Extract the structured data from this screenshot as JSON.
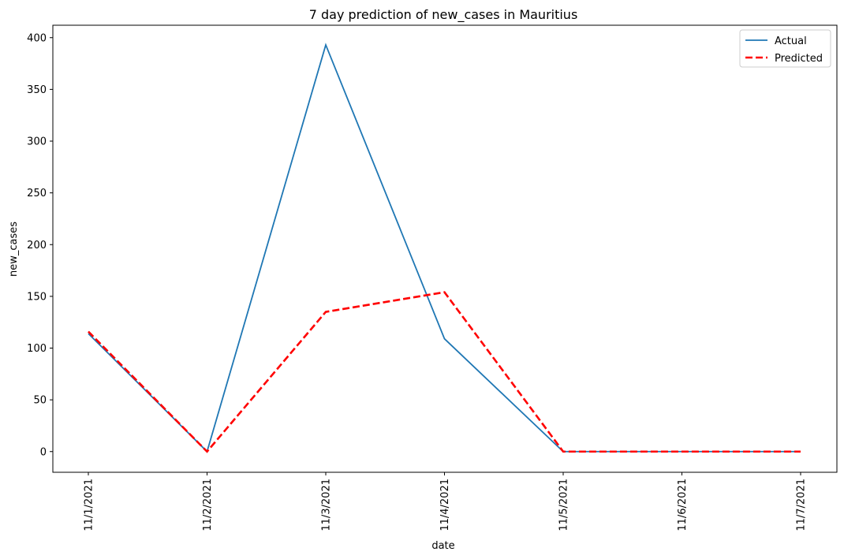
{
  "chart_data": {
    "type": "line",
    "title": "7 day prediction of new_cases in Mauritius",
    "xlabel": "date",
    "ylabel": "new_cases",
    "categories": [
      "11/1/2021",
      "11/2/2021",
      "11/3/2021",
      "11/4/2021",
      "11/5/2021",
      "11/6/2021",
      "11/7/2021"
    ],
    "ylim": [
      -20,
      412
    ],
    "yticks": [
      0,
      50,
      100,
      150,
      200,
      250,
      300,
      350,
      400
    ],
    "series": [
      {
        "name": "Actual",
        "values": [
          114,
          0,
          393,
          109,
          0,
          0,
          0
        ],
        "color": "#1f77b4",
        "style": "solid"
      },
      {
        "name": "Predicted",
        "values": [
          116,
          0,
          135,
          154,
          0,
          0,
          0
        ],
        "color": "#ff0000",
        "style": "dashed"
      }
    ],
    "legend": "top-right",
    "grid": false
  }
}
